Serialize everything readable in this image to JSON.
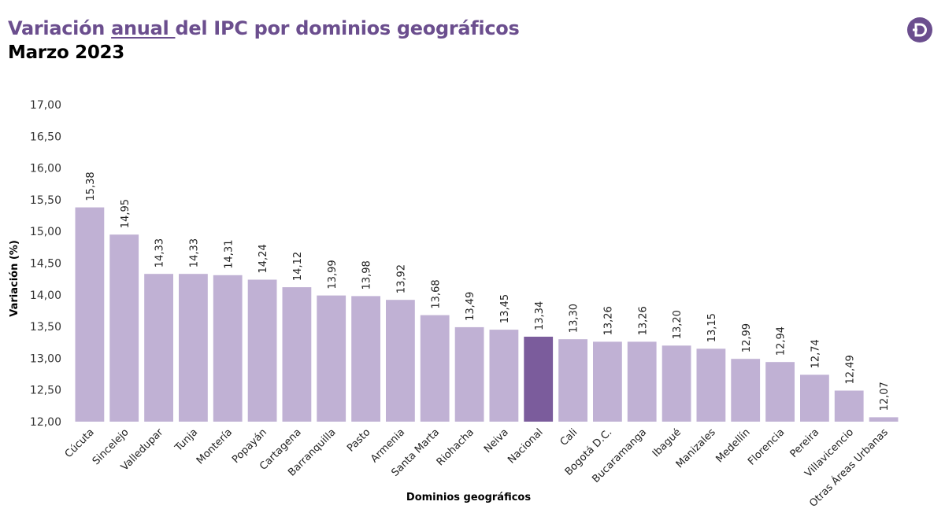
{
  "header": {
    "title_pre": "Variación ",
    "title_underlined": "anual ",
    "title_post": "del IPC por dominios geográficos",
    "subtitle": "Marzo 2023",
    "logo_icon": "d-logo-icon"
  },
  "colors": {
    "bar": "#c0b1d4",
    "highlight": "#7b5c9c",
    "brand": "#6b4e8e"
  },
  "chart_data": {
    "type": "bar",
    "title": "Variación anual del IPC por dominios geográficos",
    "subtitle": "Marzo 2023",
    "xlabel": "Dominios geográficos",
    "ylabel": "Variación (%)",
    "ylim": [
      12,
      17
    ],
    "ytick_step": 0.5,
    "yticks": [
      "12,00",
      "12,50",
      "13,00",
      "13,50",
      "14,00",
      "14,50",
      "15,00",
      "15,50",
      "16,00",
      "16,50",
      "17,00"
    ],
    "grid": false,
    "highlight_category": "Nacional",
    "categories": [
      "Cúcuta",
      "Sincelejo",
      "Valledupar",
      "Tunja",
      "Montería",
      "Popayán",
      "Cartagena",
      "Barranquilla",
      "Pasto",
      "Armenia",
      "Santa Marta",
      "Riohacha",
      "Neiva",
      "Nacional",
      "Cali",
      "Bogotá D.C.",
      "Bucaramanga",
      "Ibagué",
      "Manizales",
      "Medellín",
      "Florencia",
      "Pereira",
      "Villavicencio",
      "Otras Áreas Urbanas"
    ],
    "values": [
      15.38,
      14.95,
      14.33,
      14.33,
      14.31,
      14.24,
      14.12,
      13.99,
      13.98,
      13.92,
      13.68,
      13.49,
      13.45,
      13.34,
      13.3,
      13.26,
      13.26,
      13.2,
      13.15,
      12.99,
      12.94,
      12.74,
      12.49,
      12.07
    ],
    "labels": [
      "15,38",
      "14,95",
      "14,33",
      "14,33",
      "14,31",
      "14,24",
      "14,12",
      "13,99",
      "13,98",
      "13,92",
      "13,68",
      "13,49",
      "13,45",
      "13,34",
      "13,30",
      "13,26",
      "13,26",
      "13,20",
      "13,15",
      "12,99",
      "12,94",
      "12,74",
      "12,49",
      "12,07"
    ]
  }
}
